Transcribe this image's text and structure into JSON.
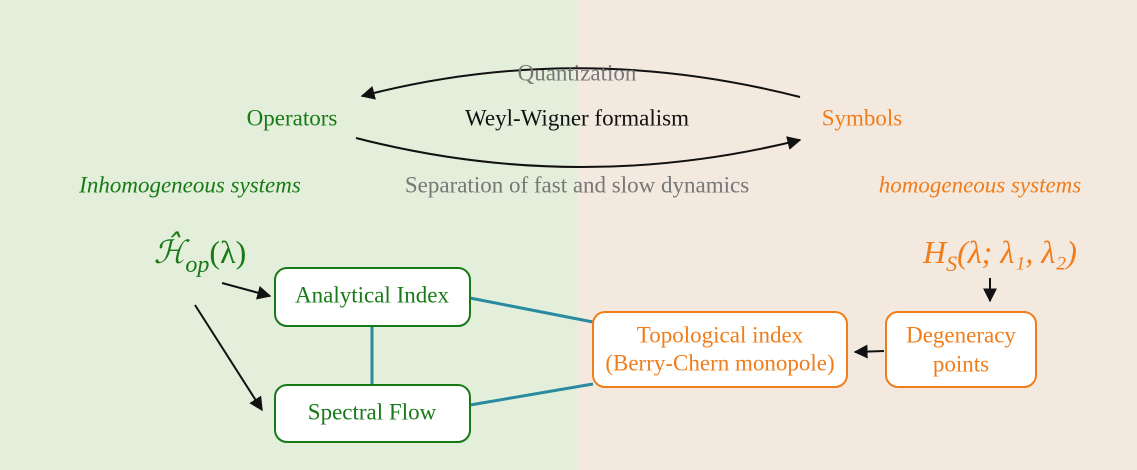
{
  "top": {
    "quantization": "Quantization",
    "operators": "Operators",
    "formalism": "Weyl-Wigner formalism",
    "symbols": "Symbols"
  },
  "middle": {
    "inhomogeneous": "Inhomogeneous systems",
    "separation": "Separation of fast and slow dynamics",
    "homogeneous": "homogeneous systems"
  },
  "formulas": {
    "left": {
      "main": "ℋ̂",
      "sub": "op",
      "rest": "(λ)"
    },
    "right": {
      "main": "H",
      "sub": "S",
      "rest": "(λ; λ₁, λ₂)"
    }
  },
  "boxes": [
    {
      "lines": [
        "Analytical Index"
      ]
    },
    {
      "lines": [
        "Spectral Flow"
      ]
    },
    {
      "lines": [
        "Topological index",
        "(Berry-Chern monopole)"
      ]
    },
    {
      "lines": [
        "Degeneracy",
        "points"
      ]
    }
  ]
}
